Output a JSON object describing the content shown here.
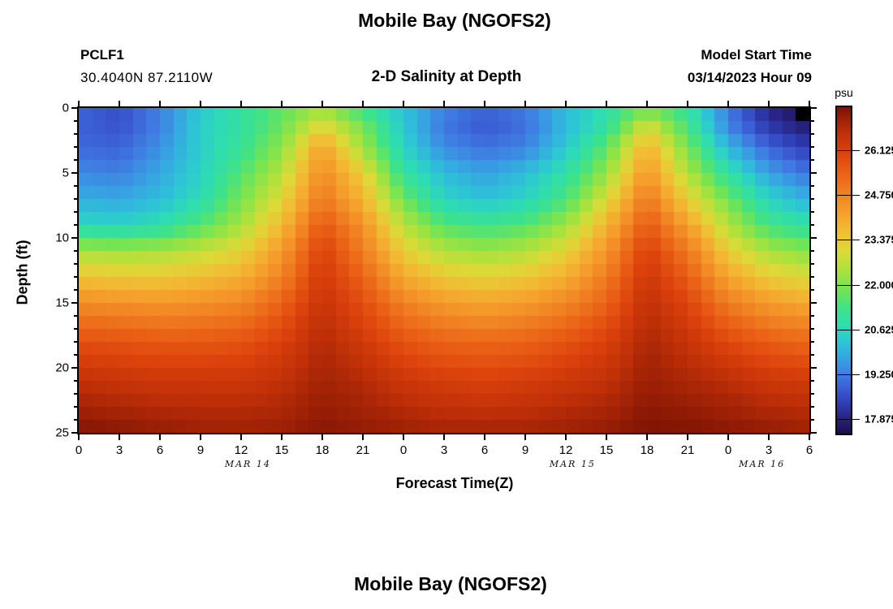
{
  "header": {
    "title": "Mobile Bay (NGOFS2)",
    "station_id": "PCLF1",
    "coordinates": "30.4040N  87.2110W",
    "subtitle": "2-D Salinity at Depth",
    "model_start_label": "Model Start Time",
    "model_start_value": "03/14/2023 Hour 09"
  },
  "footer": {
    "next_title": "Mobile Bay (NGOFS2)"
  },
  "chart_data": {
    "type": "heatmap",
    "title": "Mobile Bay (NGOFS2)",
    "subtitle": "2-D Salinity at Depth",
    "xlabel": "Forecast Time(Z)",
    "ylabel": "Depth (ft)",
    "x_range_hours": [
      0,
      54
    ],
    "y_range_ft": [
      0,
      25
    ],
    "x_major_ticks": {
      "hours": [
        0,
        3,
        6,
        9,
        12,
        15,
        18,
        21,
        24,
        27,
        30,
        33,
        36,
        39,
        42,
        45,
        48,
        51,
        54
      ],
      "labels": [
        "0",
        "3",
        "6",
        "9",
        "12",
        "15",
        "18",
        "21",
        "0",
        "3",
        "6",
        "9",
        "12",
        "15",
        "18",
        "21",
        "0",
        "3",
        "6"
      ]
    },
    "y_major_ticks": [
      0,
      5,
      10,
      15,
      20,
      25
    ],
    "y_minor_step_ft": 1,
    "date_labels": [
      {
        "text": "MAR 14",
        "hour": 12.5
      },
      {
        "text": "MAR 15",
        "hour": 36.5
      },
      {
        "text": "MAR 16",
        "hour": 50.5
      }
    ],
    "colorbar": {
      "unit": "psu",
      "min": 17.4375,
      "max": 27.4375,
      "ticks": [
        26.125,
        24.75,
        23.375,
        22.0,
        20.625,
        19.25,
        17.875
      ],
      "tick_labels": [
        "26.125",
        "24.750",
        "23.375",
        "22.000",
        "20.625",
        "19.250",
        "17.875"
      ],
      "stops": [
        [
          0.0,
          "#1c1046"
        ],
        [
          0.045,
          "#27217f"
        ],
        [
          0.09,
          "#2e3cb2"
        ],
        [
          0.135,
          "#3a5ad2"
        ],
        [
          0.18,
          "#3f7ce2"
        ],
        [
          0.23,
          "#37a3e2"
        ],
        [
          0.28,
          "#2dc5d6"
        ],
        [
          0.33,
          "#2eddb2"
        ],
        [
          0.385,
          "#3fe288"
        ],
        [
          0.44,
          "#72e455"
        ],
        [
          0.5,
          "#abe23c"
        ],
        [
          0.56,
          "#ddd938"
        ],
        [
          0.62,
          "#f2bc34"
        ],
        [
          0.68,
          "#f59e2c"
        ],
        [
          0.74,
          "#f08022"
        ],
        [
          0.8,
          "#ea6016"
        ],
        [
          0.86,
          "#dc420c"
        ],
        [
          0.92,
          "#c03008"
        ],
        [
          0.96,
          "#a02206"
        ],
        [
          1.0,
          "#7c1203"
        ]
      ]
    },
    "grid": {
      "times_hours": [
        0,
        3,
        6,
        9,
        12,
        15,
        18,
        21,
        24,
        27,
        30,
        33,
        36,
        39,
        42,
        45,
        48,
        51,
        54
      ],
      "depths_ft": [
        0,
        1.5,
        3,
        5,
        7,
        9,
        11,
        13,
        15,
        18,
        21,
        25
      ],
      "salinity_psu": [
        [
          18.9,
          18.6,
          19.3,
          20.3,
          21.0,
          21.6,
          22.3,
          21.2,
          20.2,
          19.3,
          18.9,
          19.2,
          20.1,
          20.8,
          21.8,
          21.0,
          19.2,
          17.9,
          17.4
        ],
        [
          18.9,
          18.7,
          19.3,
          20.4,
          21.0,
          21.8,
          23.2,
          21.9,
          20.3,
          19.2,
          18.8,
          19.1,
          20.1,
          21.0,
          23.0,
          21.4,
          19.4,
          18.3,
          17.8
        ],
        [
          19.0,
          18.9,
          19.5,
          20.4,
          21.1,
          22.1,
          24.2,
          22.3,
          20.5,
          19.4,
          19.1,
          19.3,
          20.3,
          21.6,
          23.9,
          21.9,
          20.0,
          18.9,
          18.3
        ],
        [
          19.4,
          19.3,
          19.8,
          20.5,
          21.5,
          22.6,
          24.6,
          23.3,
          21.0,
          20.1,
          19.7,
          20.1,
          20.9,
          22.2,
          24.4,
          22.5,
          20.9,
          19.7,
          19.1
        ],
        [
          19.9,
          19.8,
          20.1,
          20.7,
          21.9,
          23.1,
          25.0,
          23.8,
          21.8,
          20.5,
          20.2,
          20.5,
          21.4,
          23.0,
          25.0,
          23.3,
          21.8,
          20.5,
          19.9
        ],
        [
          20.6,
          20.5,
          20.8,
          21.5,
          22.4,
          23.7,
          25.6,
          24.5,
          22.6,
          21.5,
          21.2,
          21.5,
          22.3,
          23.8,
          25.6,
          24.2,
          22.5,
          21.3,
          20.9
        ],
        [
          22.4,
          22.3,
          22.4,
          22.7,
          23.2,
          24.3,
          26.1,
          24.9,
          23.3,
          22.5,
          22.3,
          22.5,
          23.2,
          24.4,
          26.1,
          25.0,
          23.3,
          22.4,
          22.0
        ],
        [
          23.5,
          23.4,
          23.4,
          23.6,
          23.9,
          24.8,
          26.3,
          25.4,
          24.0,
          23.4,
          23.2,
          23.4,
          23.9,
          24.9,
          26.4,
          25.5,
          24.1,
          23.3,
          23.0
        ],
        [
          24.6,
          24.5,
          24.4,
          24.5,
          24.7,
          25.4,
          26.5,
          25.8,
          24.8,
          24.3,
          24.1,
          24.3,
          24.7,
          25.4,
          26.6,
          26.0,
          24.9,
          24.3,
          24.0
        ],
        [
          25.8,
          25.7,
          25.6,
          25.6,
          25.7,
          26.1,
          26.8,
          26.3,
          25.7,
          25.4,
          25.3,
          25.4,
          25.7,
          26.1,
          26.9,
          26.5,
          25.9,
          25.5,
          25.3
        ],
        [
          26.6,
          26.5,
          26.4,
          26.4,
          26.4,
          26.6,
          27.0,
          26.8,
          26.4,
          26.2,
          26.1,
          26.2,
          26.4,
          26.6,
          27.1,
          26.9,
          26.7,
          26.4,
          26.3
        ],
        [
          27.4,
          27.3,
          27.2,
          27.1,
          27.1,
          27.1,
          27.3,
          27.2,
          27.1,
          27.0,
          27.0,
          27.0,
          27.1,
          27.2,
          27.4,
          27.4,
          27.3,
          27.2,
          27.1
        ]
      ]
    },
    "missing_cell": {
      "hour": 53,
      "depth_ft": 0,
      "color": "#000000"
    },
    "cell_hours": 1,
    "cell_feet": 1,
    "legend_position": "right",
    "grid_lines": false
  }
}
